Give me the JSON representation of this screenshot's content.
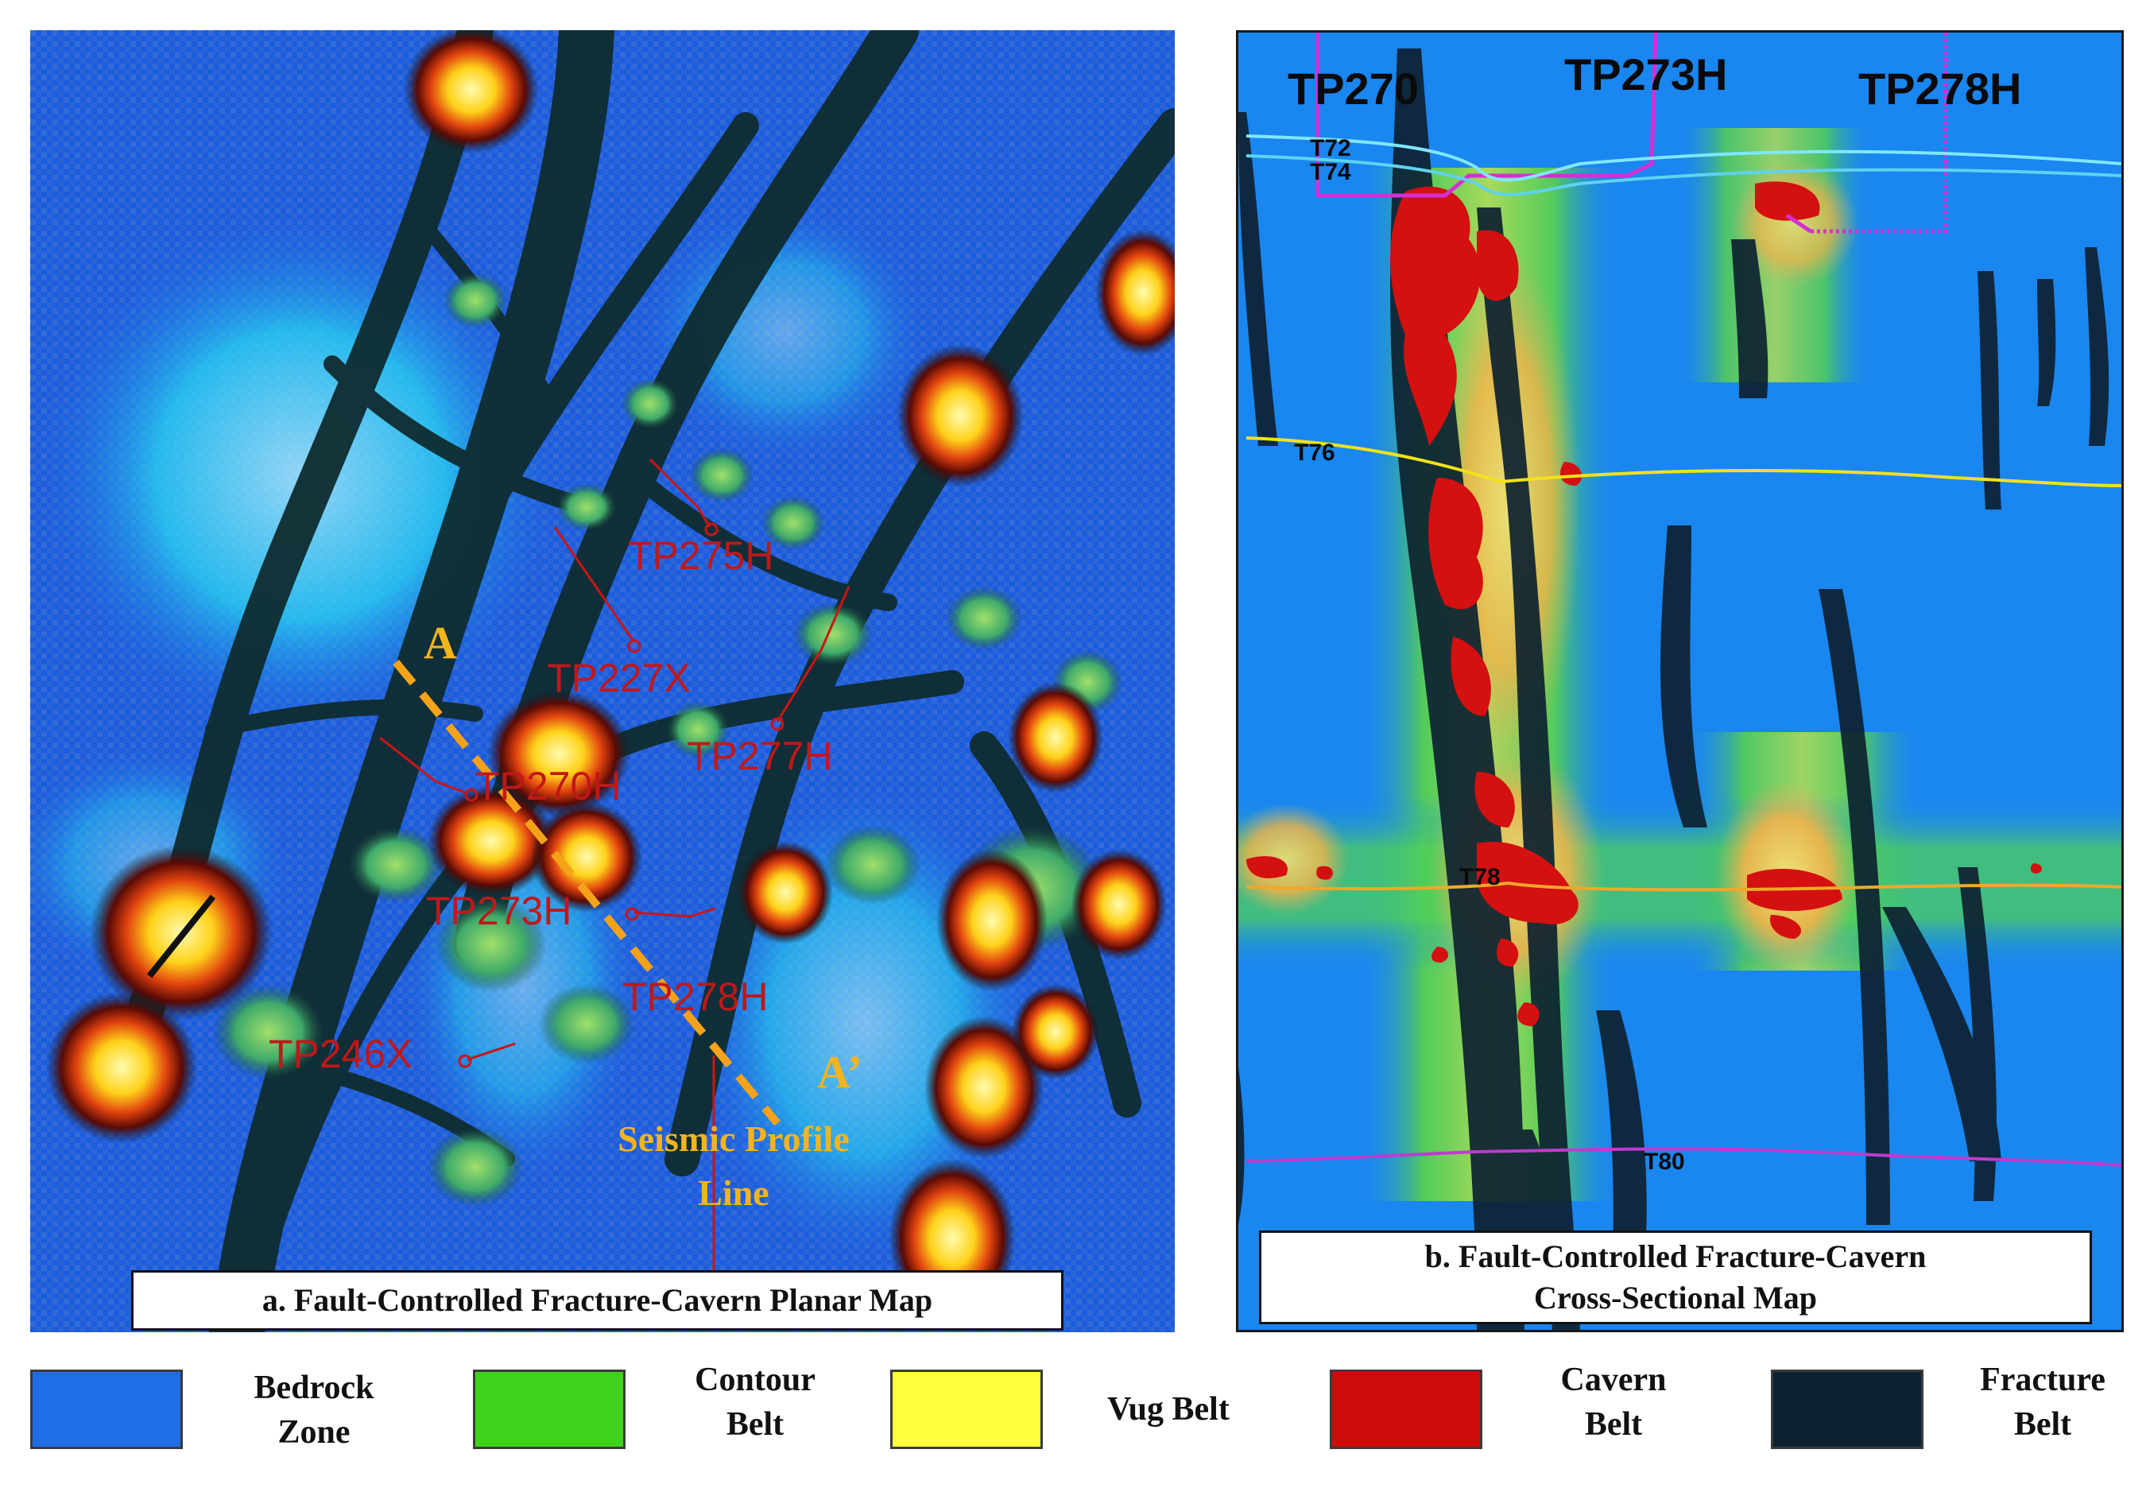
{
  "panel_a": {
    "caption": "a. Fault-Controlled Fracture-Cavern Planar Map",
    "wells": [
      "TP275H",
      "TP227X",
      "TP277H",
      "TP270H",
      "TP273H",
      "TP278H",
      "TP246X"
    ],
    "profile_start": "A",
    "profile_end": "A’",
    "profile_label_line1": "Seismic Profile",
    "profile_label_line2": "Line"
  },
  "panel_b": {
    "caption_line1": "b. Fault-Controlled Fracture-Cavern",
    "caption_line2": "Cross-Sectional Map",
    "wells": [
      "TP270",
      "TP273H",
      "TP278H"
    ],
    "horizons": [
      "T72",
      "T74",
      "T76",
      "T78",
      "T80"
    ],
    "horizon_colors": {
      "T72": "#7fe7ff",
      "T74": "#5fd2f0",
      "T76": "#f3e21a",
      "T78": "#f0a82a",
      "T80": "#c13ad0"
    }
  },
  "legend": [
    {
      "label_lines": [
        "Bedrock",
        "Zone"
      ],
      "color": "#1f6ee8"
    },
    {
      "label_lines": [
        "Contour",
        "Belt"
      ],
      "color": "#3fd21b"
    },
    {
      "label_lines": [
        "Vug Belt"
      ],
      "color": "#ffff3c"
    },
    {
      "label_lines": [
        "Cavern",
        "Belt"
      ],
      "color": "#cf0a0a"
    },
    {
      "label_lines": [
        "Fracture",
        "Belt"
      ],
      "color": "#0d2230"
    }
  ],
  "colors": {
    "well_track": "#cc1414",
    "profile_line": "#f5a21b",
    "profile_text": "#f4b41c"
  }
}
